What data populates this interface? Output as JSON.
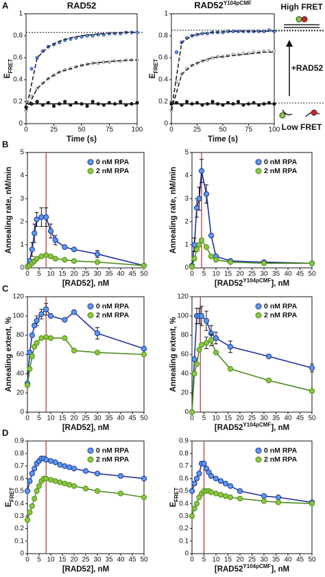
{
  "chart_data": [
    {
      "type": "scatter",
      "panel": "A",
      "title": "RAD52",
      "y_label": [
        {
          "text": "E"
        },
        {
          "text": "FRET",
          "sub": true
        }
      ],
      "x_label": "Time (s)",
      "xlim": [
        0,
        100
      ],
      "ylim": [
        0,
        1
      ],
      "xticks": [
        0,
        25,
        50,
        75,
        100
      ],
      "yticks": [
        0,
        0.2,
        0.4,
        0.6,
        0.8,
        1
      ],
      "hlines": [
        0.83
      ],
      "x": [
        0,
        5,
        10,
        15,
        20,
        25,
        30,
        35,
        40,
        45,
        50,
        55,
        60,
        65,
        70,
        75,
        80,
        85,
        90,
        95,
        100
      ],
      "series": [
        {
          "color": "#1f2f9e",
          "fill": "#5b8ee0",
          "values": [
            0.12,
            0.5,
            0.6,
            0.66,
            0.7,
            0.72,
            0.74,
            0.76,
            0.77,
            0.78,
            0.79,
            0.8,
            0.8,
            0.81,
            0.81,
            0.82,
            0.82,
            0.82,
            0.83,
            0.83,
            0.83
          ]
        },
        {
          "color": "#8a8a8a",
          "fill": "#cccccc",
          "values": [
            0.12,
            0.25,
            0.32,
            0.37,
            0.41,
            0.44,
            0.47,
            0.49,
            0.5,
            0.52,
            0.53,
            0.54,
            0.55,
            0.55,
            0.56,
            0.56,
            0.57,
            0.57,
            0.58,
            0.58,
            0.58
          ]
        },
        {
          "color": "#111111",
          "fill": "#111111",
          "values": [
            0.15,
            0.18,
            0.2,
            0.17,
            0.19,
            0.16,
            0.18,
            0.2,
            0.17,
            0.19,
            0.18,
            0.16,
            0.2,
            0.18,
            0.17,
            0.19,
            0.18,
            0.2,
            0.17,
            0.18,
            0.19
          ]
        },
        {
          "style": "fit",
          "dash": "6 3",
          "color": "#222222",
          "x": [
            0,
            10,
            20,
            30,
            40,
            50,
            60,
            70,
            80,
            90,
            100
          ],
          "values": [
            0.12,
            0.6,
            0.7,
            0.75,
            0.78,
            0.8,
            0.81,
            0.82,
            0.825,
            0.83,
            0.83
          ]
        },
        {
          "style": "fit",
          "dash": "6 3",
          "color": "#222222",
          "x": [
            0,
            10,
            20,
            30,
            40,
            50,
            60,
            70,
            80,
            90,
            100
          ],
          "values": [
            0.12,
            0.32,
            0.41,
            0.47,
            0.5,
            0.53,
            0.55,
            0.56,
            0.57,
            0.575,
            0.58
          ]
        },
        {
          "style": "fit",
          "color": "#222222",
          "x": [
            0,
            10,
            20,
            30,
            40,
            50,
            60,
            70,
            80,
            90,
            100
          ],
          "values": [
            0.18,
            0.18,
            0.18,
            0.18,
            0.18,
            0.18,
            0.18,
            0.18,
            0.18,
            0.18,
            0.18
          ]
        }
      ]
    },
    {
      "type": "scatter",
      "title": [
        {
          "text": "RAD52"
        },
        {
          "text": "Y104pCMF",
          "sup": true
        }
      ],
      "y_label": [
        {
          "text": "E"
        },
        {
          "text": "FRET",
          "sub": true
        }
      ],
      "x_label": "Time (s)",
      "xlim": [
        0,
        100
      ],
      "ylim": [
        0,
        1
      ],
      "xticks": [
        0,
        25,
        50,
        75,
        100
      ],
      "yticks": [
        0,
        0.2,
        0.4,
        0.6,
        0.8,
        1
      ],
      "hlines": [
        0.85
      ],
      "x": [
        0,
        5,
        10,
        15,
        20,
        25,
        30,
        35,
        40,
        45,
        50,
        55,
        60,
        65,
        70,
        75,
        80,
        85,
        90,
        95,
        100
      ],
      "series": [
        {
          "color": "#1f2f9e",
          "fill": "#5b8ee0",
          "values": [
            0.12,
            0.65,
            0.74,
            0.78,
            0.8,
            0.81,
            0.82,
            0.82,
            0.83,
            0.83,
            0.83,
            0.84,
            0.84,
            0.84,
            0.84,
            0.84,
            0.84,
            0.84,
            0.84,
            0.85,
            0.84
          ]
        },
        {
          "color": "#8a8a8a",
          "fill": "#cccccc",
          "values": [
            0.12,
            0.38,
            0.45,
            0.5,
            0.53,
            0.55,
            0.57,
            0.58,
            0.6,
            0.61,
            0.61,
            0.62,
            0.63,
            0.63,
            0.64,
            0.64,
            0.65,
            0.65,
            0.66,
            0.66,
            0.66
          ]
        },
        {
          "color": "#111111",
          "fill": "#111111",
          "values": [
            0.18,
            0.19,
            0.17,
            0.2,
            0.18,
            0.19,
            0.17,
            0.18,
            0.2,
            0.18,
            0.17,
            0.19,
            0.18,
            0.2,
            0.17,
            0.18,
            0.19,
            0.17,
            0.18,
            0.19,
            0.18
          ]
        },
        {
          "style": "fit",
          "dash": "6 3",
          "color": "#222222",
          "x": [
            0,
            10,
            20,
            30,
            40,
            50,
            60,
            70,
            80,
            90,
            100
          ],
          "values": [
            0.12,
            0.74,
            0.8,
            0.82,
            0.83,
            0.835,
            0.84,
            0.84,
            0.84,
            0.84,
            0.845
          ]
        },
        {
          "style": "fit",
          "dash": "6 3",
          "color": "#222222",
          "x": [
            0,
            10,
            20,
            30,
            40,
            50,
            60,
            70,
            80,
            90,
            100
          ],
          "values": [
            0.12,
            0.45,
            0.53,
            0.57,
            0.6,
            0.61,
            0.62,
            0.63,
            0.64,
            0.65,
            0.65
          ]
        },
        {
          "style": "fit",
          "color": "#222222",
          "x": [
            0,
            10,
            20,
            30,
            40,
            50,
            60,
            70,
            80,
            90,
            100
          ],
          "values": [
            0.18,
            0.18,
            0.18,
            0.18,
            0.18,
            0.18,
            0.18,
            0.18,
            0.18,
            0.18,
            0.18
          ]
        }
      ]
    },
    {
      "type": "line",
      "panel": "B",
      "y_label": "Annealing rate, nM/min",
      "x_label": "[RAD52], nM",
      "legend": "upper right",
      "xlim": [
        0,
        50
      ],
      "ylim": [
        0,
        5
      ],
      "xticks": [
        0,
        5,
        10,
        15,
        20,
        25,
        30,
        35,
        40,
        45,
        50
      ],
      "yticks": [
        0,
        1,
        2,
        3,
        4,
        5
      ],
      "vlines": [
        8
      ],
      "x": [
        0,
        1,
        2,
        3,
        4,
        6,
        8,
        10,
        12,
        16,
        20,
        30,
        50
      ],
      "series": [
        {
          "name": "0 nM RPA",
          "color": "#1f2f9e",
          "fill": "#5b9be6",
          "values": [
            0.05,
            0.3,
            0.8,
            1.5,
            2.1,
            2.2,
            2.2,
            1.6,
            1.2,
            0.9,
            0.8,
            0.6,
            0.1
          ],
          "errors": [
            null,
            null,
            0.3,
            0.4,
            0.3,
            0.4,
            0.4,
            0.3,
            0.2,
            null,
            null,
            0.15,
            null
          ]
        },
        {
          "name": "2 nM RPA",
          "color": "#4c8c1c",
          "fill": "#8dc63f",
          "values": [
            0.05,
            0.1,
            0.2,
            0.3,
            0.4,
            0.5,
            0.55,
            0.5,
            0.4,
            0.35,
            0.3,
            0.25,
            0.1
          ]
        }
      ]
    },
    {
      "type": "line",
      "y_label": "Annealing rate, nM/min",
      "x_label": [
        {
          "text": "[RAD52"
        },
        {
          "text": "Y104pCMF",
          "sup": true
        },
        {
          "text": "], nM"
        }
      ],
      "legend": "upper right",
      "xlim": [
        0,
        50
      ],
      "ylim": [
        0,
        5
      ],
      "xticks": [
        0,
        5,
        10,
        15,
        20,
        25,
        30,
        35,
        40,
        45,
        50
      ],
      "yticks": [
        0,
        1,
        2,
        3,
        4,
        5
      ],
      "vlines": [
        4
      ],
      "x": [
        0,
        1,
        2,
        3,
        4,
        6,
        8,
        10,
        16,
        30,
        50
      ],
      "series": [
        {
          "name": "0 nM RPA",
          "color": "#1f2f9e",
          "fill": "#5b9be6",
          "values": [
            0.1,
            1.0,
            2.6,
            3.0,
            4.2,
            3.2,
            1.4,
            0.5,
            0.3,
            0.25,
            0.2
          ],
          "errors": [
            null,
            0.3,
            0.4,
            0.5,
            0.5,
            0.4,
            null,
            null,
            null,
            null,
            null
          ]
        },
        {
          "name": "2 nM RPA",
          "color": "#4c8c1c",
          "fill": "#8dc63f",
          "values": [
            0.05,
            0.4,
            0.8,
            1.0,
            1.2,
            0.9,
            0.5,
            0.35,
            0.25,
            0.2,
            0.2
          ]
        }
      ]
    },
    {
      "type": "line",
      "panel": "C",
      "y_label": "Annealing extent, %",
      "x_label": "[RAD52], nM",
      "legend": "upper right",
      "xlim": [
        0,
        50
      ],
      "ylim": [
        0,
        120
      ],
      "xticks": [
        0,
        5,
        10,
        15,
        20,
        25,
        30,
        35,
        40,
        45,
        50
      ],
      "yticks": [
        0,
        20,
        40,
        60,
        80,
        100,
        120
      ],
      "vlines": [
        8
      ],
      "x": [
        0,
        1,
        2,
        3,
        4,
        6,
        8,
        10,
        16,
        20,
        30,
        50
      ],
      "series": [
        {
          "name": "0 nM RPA",
          "color": "#1f2f9e",
          "fill": "#5b9be6",
          "values": [
            30,
            62,
            80,
            90,
            95,
            102,
            107,
            100,
            96,
            104,
            82,
            66
          ],
          "errors": [
            null,
            null,
            null,
            null,
            5,
            5,
            6,
            null,
            null,
            null,
            6,
            null
          ]
        },
        {
          "name": "2 nM RPA",
          "color": "#4c8c1c",
          "fill": "#8dc63f",
          "values": [
            28,
            45,
            58,
            68,
            72,
            77,
            78,
            77,
            77,
            64,
            62,
            60
          ]
        }
      ]
    },
    {
      "type": "line",
      "y_label": "Annealing extent, %",
      "x_label": [
        {
          "text": "[RAD52"
        },
        {
          "text": "Y104pCMF",
          "sup": true
        },
        {
          "text": "], nM"
        }
      ],
      "legend": "upper right",
      "xlim": [
        0,
        50
      ],
      "ylim": [
        0,
        120
      ],
      "xticks": [
        0,
        5,
        10,
        15,
        20,
        25,
        30,
        35,
        40,
        45,
        50
      ],
      "yticks": [
        0,
        20,
        40,
        60,
        80,
        100,
        120
      ],
      "vlines": [
        3.5
      ],
      "x": [
        0,
        1,
        2,
        3,
        4,
        6,
        8,
        10,
        16,
        32,
        50
      ],
      "series": [
        {
          "name": "0 nM RPA",
          "color": "#1f2f9e",
          "fill": "#5b9be6",
          "values": [
            0,
            55,
            100,
            100,
            100,
            95,
            82,
            77,
            68,
            58,
            46
          ],
          "errors": [
            null,
            null,
            8,
            8,
            10,
            10,
            8,
            6,
            6,
            null,
            4
          ]
        },
        {
          "name": "2 nM RPA",
          "color": "#4c8c1c",
          "fill": "#8dc63f",
          "values": [
            0,
            40,
            50,
            65,
            70,
            72,
            75,
            62,
            45,
            33,
            22
          ],
          "errors": [
            null,
            null,
            null,
            null,
            null,
            6,
            6,
            null,
            null,
            null,
            null
          ]
        }
      ]
    },
    {
      "type": "line",
      "panel": "D",
      "y_label": [
        {
          "text": "E"
        },
        {
          "text": "FRET",
          "sub": true
        }
      ],
      "x_label": "[RAD52], nM",
      "legend": "upper right",
      "xlim": [
        0,
        50
      ],
      "ylim": [
        0,
        0.9
      ],
      "xticks": [
        0,
        5,
        10,
        15,
        20,
        25,
        30,
        35,
        40,
        45,
        50
      ],
      "yticks": [
        0,
        0.1,
        0.2,
        0.3,
        0.4,
        0.5,
        0.6,
        0.7,
        0.8,
        0.9
      ],
      "vlines": [
        8
      ],
      "x": [
        0,
        1,
        2,
        3,
        4,
        5,
        6,
        7,
        8,
        10,
        12,
        14,
        16,
        18,
        20,
        25,
        30,
        40,
        50
      ],
      "series": [
        {
          "name": "0 nM RPA",
          "color": "#1f2f9e",
          "fill": "#5b9be6",
          "values": [
            0.5,
            0.58,
            0.64,
            0.68,
            0.72,
            0.74,
            0.76,
            0.76,
            0.75,
            0.74,
            0.73,
            0.71,
            0.7,
            0.69,
            0.68,
            0.66,
            0.64,
            0.62,
            0.6
          ]
        },
        {
          "name": "2 nM RPA",
          "color": "#4c8c1c",
          "fill": "#8dc63f",
          "values": [
            0.27,
            0.33,
            0.38,
            0.44,
            0.5,
            0.54,
            0.58,
            0.6,
            0.6,
            0.59,
            0.58,
            0.57,
            0.56,
            0.55,
            0.54,
            0.52,
            0.5,
            0.48,
            0.45
          ]
        }
      ]
    },
    {
      "type": "line",
      "y_label": [
        {
          "text": "E"
        },
        {
          "text": "FRET",
          "sub": true
        }
      ],
      "x_label": [
        {
          "text": "[RAD52"
        },
        {
          "text": "Y104pCMF",
          "sup": true
        },
        {
          "text": "], nM"
        }
      ],
      "legend": "upper right",
      "xlim": [
        0,
        50
      ],
      "ylim": [
        0,
        0.9
      ],
      "xticks": [
        0,
        5,
        10,
        15,
        20,
        25,
        30,
        35,
        40,
        45,
        50
      ],
      "yticks": [
        0,
        0.1,
        0.2,
        0.3,
        0.4,
        0.5,
        0.6,
        0.7,
        0.8,
        0.9
      ],
      "vlines": [
        5
      ],
      "x": [
        0,
        1,
        2,
        3,
        4,
        5,
        6,
        7,
        8,
        10,
        12,
        14,
        16,
        20,
        30,
        36,
        50
      ],
      "series": [
        {
          "name": "0 nM RPA",
          "color": "#1f2f9e",
          "fill": "#5b9be6",
          "values": [
            0.5,
            0.56,
            0.6,
            0.64,
            0.72,
            0.72,
            0.68,
            0.65,
            0.62,
            0.6,
            0.58,
            0.56,
            0.54,
            0.5,
            0.46,
            0.45,
            0.41
          ]
        },
        {
          "name": "2 nM RPA",
          "color": "#4c8c1c",
          "fill": "#8dc63f",
          "values": [
            0.3,
            0.36,
            0.4,
            0.45,
            0.48,
            0.5,
            0.5,
            0.5,
            0.49,
            0.48,
            0.47,
            0.46,
            0.45,
            0.44,
            0.42,
            0.41,
            0.4
          ]
        }
      ]
    }
  ],
  "annotations": {
    "high": "High FRET",
    "mid": "+RAD52",
    "low": "Low FRET"
  }
}
